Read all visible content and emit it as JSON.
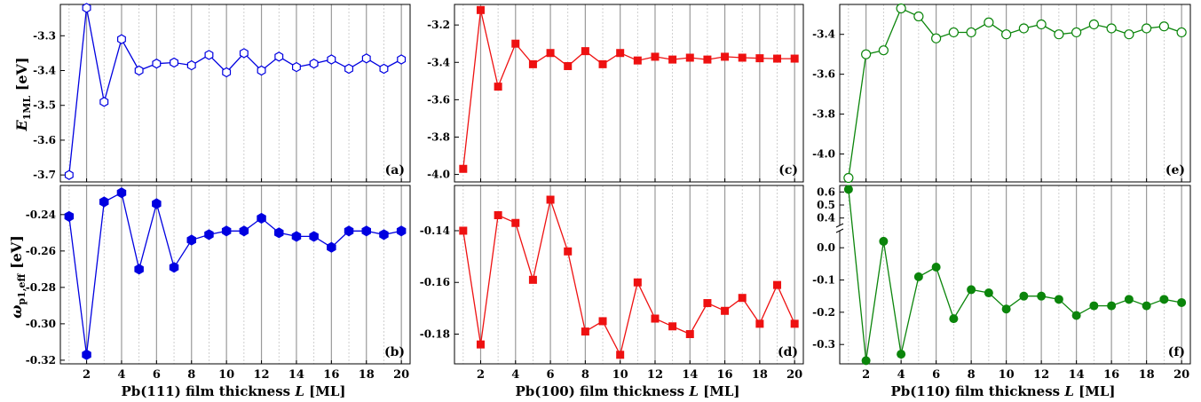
{
  "shared": {
    "x_values": [
      1,
      2,
      3,
      4,
      5,
      6,
      7,
      8,
      9,
      10,
      11,
      12,
      13,
      14,
      15,
      16,
      17,
      18,
      19,
      20
    ],
    "x_ticks": [
      2,
      4,
      6,
      8,
      10,
      12,
      14,
      16,
      18,
      20
    ],
    "xlim": [
      0.5,
      20.5
    ]
  },
  "y_labels": {
    "top_base": "E",
    "top_sub": "1ML",
    "top_unit": " [eV]",
    "bottom_base": "ω",
    "bottom_sub": "p1,eff",
    "bottom_unit": " [eV]"
  },
  "chart_data": [
    {
      "id": "a",
      "panel_label": "(a)",
      "type": "line",
      "series_style": "open-hexagon",
      "color": "#0000e0",
      "ylim": [
        -3.72,
        -3.21
      ],
      "y_ticks": [
        -3.7,
        -3.6,
        -3.5,
        -3.4,
        -3.3
      ],
      "x": [
        1,
        2,
        3,
        4,
        5,
        6,
        7,
        8,
        9,
        10,
        11,
        12,
        13,
        14,
        15,
        16,
        17,
        18,
        19,
        20
      ],
      "y": [
        -3.7,
        -3.22,
        -3.49,
        -3.31,
        -3.4,
        -3.38,
        -3.377,
        -3.385,
        -3.355,
        -3.405,
        -3.35,
        -3.4,
        -3.36,
        -3.39,
        -3.38,
        -3.368,
        -3.395,
        -3.365,
        -3.395,
        -3.368
      ],
      "xlabel": ""
    },
    {
      "id": "b",
      "panel_label": "(b)",
      "type": "line",
      "series_style": "filled-hexagon",
      "color": "#0000e0",
      "ylim": [
        -0.322,
        -0.224
      ],
      "y_ticks": [
        -0.32,
        -0.3,
        -0.28,
        -0.26,
        -0.24
      ],
      "x": [
        1,
        2,
        3,
        4,
        5,
        6,
        7,
        8,
        9,
        10,
        11,
        12,
        13,
        14,
        15,
        16,
        17,
        18,
        19,
        20
      ],
      "y": [
        -0.241,
        -0.317,
        -0.233,
        -0.228,
        -0.27,
        -0.234,
        -0.269,
        -0.254,
        -0.251,
        -0.249,
        -0.249,
        -0.242,
        -0.25,
        -0.252,
        -0.252,
        -0.258,
        -0.249,
        -0.249,
        -0.251,
        -0.249
      ],
      "xlabel": "Pb(111) film thickness L [ML]"
    },
    {
      "id": "c",
      "panel_label": "(c)",
      "type": "line",
      "series_style": "filled-square",
      "color": "#ee1111",
      "ylim": [
        -4.04,
        -3.09
      ],
      "y_ticks": [
        -4.0,
        -3.8,
        -3.6,
        -3.4,
        -3.2
      ],
      "x": [
        1,
        2,
        3,
        4,
        5,
        6,
        7,
        8,
        9,
        10,
        11,
        12,
        13,
        14,
        15,
        16,
        17,
        18,
        19,
        20
      ],
      "y": [
        -3.97,
        -3.12,
        -3.53,
        -3.3,
        -3.41,
        -3.35,
        -3.42,
        -3.34,
        -3.41,
        -3.35,
        -3.39,
        -3.37,
        -3.385,
        -3.375,
        -3.385,
        -3.37,
        -3.375,
        -3.378,
        -3.38,
        -3.38
      ],
      "xlabel": ""
    },
    {
      "id": "d",
      "panel_label": "(d)",
      "type": "line",
      "series_style": "filled-square",
      "color": "#ee1111",
      "ylim": [
        -0.1915,
        -0.1225
      ],
      "y_ticks": [
        -0.18,
        -0.16,
        -0.14
      ],
      "x": [
        1,
        2,
        3,
        4,
        5,
        6,
        7,
        8,
        9,
        10,
        11,
        12,
        13,
        14,
        15,
        16,
        17,
        18,
        19,
        20
      ],
      "y": [
        -0.14,
        -0.184,
        -0.134,
        -0.137,
        -0.159,
        -0.128,
        -0.148,
        -0.179,
        -0.175,
        -0.188,
        -0.16,
        -0.174,
        -0.177,
        -0.18,
        -0.168,
        -0.171,
        -0.166,
        -0.176,
        -0.161,
        -0.176
      ],
      "xlabel": "Pb(100) film thickness L [ML]"
    },
    {
      "id": "e",
      "panel_label": "(e)",
      "type": "line",
      "series_style": "open-circle",
      "color": "#0b850b",
      "ylim": [
        -4.14,
        -3.25
      ],
      "y_ticks": [
        -4.0,
        -3.8,
        -3.6,
        -3.4
      ],
      "x": [
        1,
        2,
        3,
        4,
        5,
        6,
        7,
        8,
        9,
        10,
        11,
        12,
        13,
        14,
        15,
        16,
        17,
        18,
        19,
        20
      ],
      "y": [
        -4.12,
        -3.5,
        -3.48,
        -3.27,
        -3.31,
        -3.42,
        -3.39,
        -3.39,
        -3.34,
        -3.4,
        -3.37,
        -3.35,
        -3.4,
        -3.39,
        -3.35,
        -3.37,
        -3.4,
        -3.37,
        -3.36,
        -3.39
      ],
      "xlabel": ""
    },
    {
      "id": "f",
      "panel_label": "(f)",
      "type": "line",
      "series_style": "filled-circle",
      "color": "#0b850b",
      "axis_break": true,
      "y_ticks": [
        "0.6",
        "0.5",
        "0.4",
        "0.0",
        "-0.1",
        "-0.2",
        "-0.3"
      ],
      "x": [
        1,
        2,
        3,
        4,
        5,
        6,
        7,
        8,
        9,
        10,
        11,
        12,
        13,
        14,
        15,
        16,
        17,
        18,
        19,
        20
      ],
      "y": [
        0.62,
        -0.35,
        0.02,
        -0.33,
        -0.09,
        -0.06,
        -0.22,
        -0.13,
        -0.14,
        -0.19,
        -0.15,
        -0.15,
        -0.16,
        -0.21,
        -0.18,
        -0.18,
        -0.16,
        -0.18,
        -0.16,
        -0.17
      ],
      "xlabel": "Pb(110) film thickness L [ML]"
    }
  ]
}
